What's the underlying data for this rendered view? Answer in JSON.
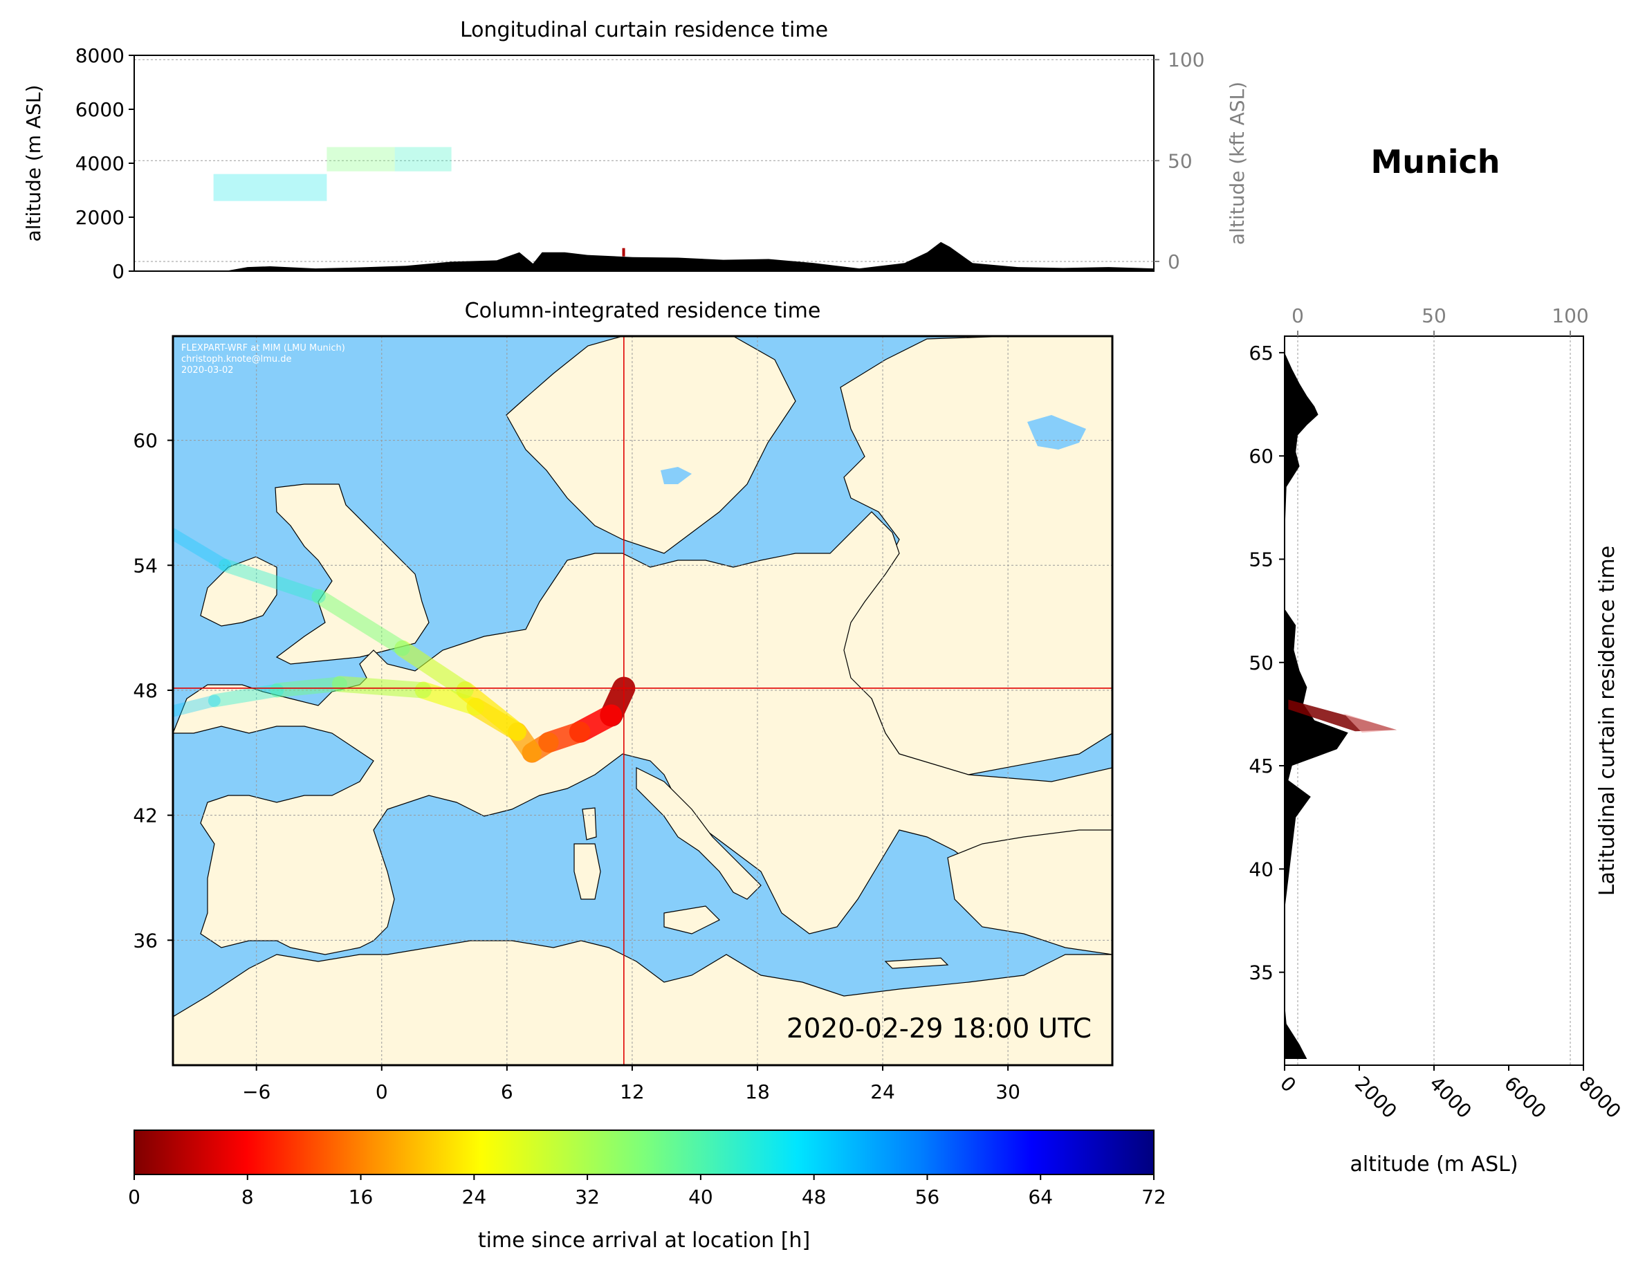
{
  "figure": {
    "location_title": "Munich",
    "timestamp": "2020-02-29 18:00 UTC",
    "watermark": [
      "FLEXPART-WRF at MIM (LMU Munich)",
      "christoph.knote@lmu.de",
      "2020-03-02"
    ]
  },
  "colors": {
    "ocean": "#87cefa",
    "land": "#fff7dc",
    "terrain": "#000000",
    "crosshair": "#e00000"
  },
  "chart_data": [
    {
      "id": "longitudinal",
      "type": "area",
      "title": "Longitudinal curtain residence time",
      "xlabel": "",
      "ylabel": "altitude (m ASL)",
      "ylabel2": "altitude (kft ASL)",
      "xlim": [
        -10,
        35
      ],
      "ylim": [
        0,
        8000
      ],
      "yticks": [
        "0",
        "2000",
        "4000",
        "6000",
        "8000"
      ],
      "y2ticks": [
        "0",
        "50",
        "100"
      ],
      "terrain_profile": {
        "x": [
          -10,
          -6,
          -5,
          -4,
          -2,
          0,
          2,
          4,
          6,
          7,
          7.6,
          8,
          9,
          10,
          12,
          14,
          16,
          18,
          20,
          22,
          24,
          25,
          25.6,
          26,
          27,
          29,
          31,
          33,
          35
        ],
        "y": [
          0,
          0,
          150,
          180,
          100,
          140,
          200,
          350,
          400,
          700,
          280,
          700,
          700,
          600,
          520,
          500,
          420,
          450,
          300,
          100,
          300,
          700,
          1080,
          900,
          300,
          150,
          120,
          150,
          100
        ]
      },
      "residence_patches": [
        {
          "x": [
            -6.5,
            -1.5
          ],
          "y": [
            2600,
            3600
          ],
          "time_h": 45
        },
        {
          "x": [
            -1.5,
            1.5
          ],
          "y": [
            3700,
            4600
          ],
          "time_h": 36
        },
        {
          "x": [
            1.5,
            4.0
          ],
          "y": [
            3700,
            4600
          ],
          "time_h": 42
        }
      ],
      "marker": {
        "x": 11.6,
        "y": 700
      }
    },
    {
      "id": "map",
      "type": "heatmap",
      "title": "Column-integrated residence time",
      "xlim": [
        -10,
        35
      ],
      "ylim": [
        30,
        65
      ],
      "xticks": [
        -6,
        0,
        6,
        12,
        18,
        24,
        30
      ],
      "yticks": [
        36,
        42,
        48,
        54,
        60
      ],
      "crosshair": {
        "lon": 11.6,
        "lat": 48.1
      },
      "trajectories": [
        {
          "points": [
            [
              11.6,
              48.1
            ],
            [
              11.0,
              46.8
            ],
            [
              9.5,
              46.0
            ],
            [
              8.0,
              45.5
            ],
            [
              7.2,
              45.0
            ]
          ],
          "time_h": [
            0,
            6,
            10,
            13,
            16
          ]
        },
        {
          "points": [
            [
              7.2,
              45.0
            ],
            [
              6.5,
              46.0
            ],
            [
              4.5,
              47.2
            ],
            [
              2.0,
              48.0
            ],
            [
              -2.0,
              48.3
            ],
            [
              -5.0,
              48.0
            ]
          ],
          "time_h": [
            16,
            20,
            24,
            28,
            34,
            40
          ]
        },
        {
          "points": [
            [
              6.5,
              46.0
            ],
            [
              4.0,
              48.0
            ],
            [
              1.0,
              50.0
            ],
            [
              -3.0,
              52.5
            ],
            [
              -7.5,
              54.0
            ],
            [
              -10.0,
              55.5
            ]
          ],
          "time_h": [
            20,
            26,
            32,
            40,
            46,
            52
          ]
        },
        {
          "points": [
            [
              -5.0,
              48.0
            ],
            [
              -8.0,
              47.5
            ],
            [
              -10.0,
              47.0
            ]
          ],
          "time_h": [
            40,
            46,
            52
          ]
        }
      ]
    },
    {
      "id": "latitudinal",
      "type": "area",
      "title": "Latitudinal curtain residence time",
      "xlabel": "altitude (m ASL)",
      "xlim": [
        0,
        8000
      ],
      "ylim": [
        30.5,
        65.8
      ],
      "xticks": [
        "0",
        "2000",
        "4000",
        "6000",
        "8000"
      ],
      "x2ticks": [
        "0",
        "50",
        "100"
      ],
      "yticks": [
        "35",
        "40",
        "45",
        "50",
        "55",
        "60",
        "65"
      ],
      "terrain_profile": {
        "lat": [
          30.8,
          31.5,
          32.5,
          33.5,
          35,
          38,
          42.5,
          43.5,
          44.3,
          45,
          45.8,
          46.6,
          47.2,
          48.0,
          48.8,
          49.6,
          50.6,
          51.8,
          52.6,
          53.5,
          56,
          58.5,
          59.5,
          60.2,
          61.0,
          61.5,
          62.0,
          62.4,
          62.9,
          63.5,
          64.2,
          65.0,
          65.8
        ],
        "alt": [
          600,
          400,
          50,
          0,
          0,
          0,
          300,
          700,
          100,
          200,
          1400,
          1700,
          800,
          500,
          600,
          400,
          250,
          300,
          0,
          0,
          0,
          50,
          400,
          300,
          350,
          600,
          900,
          800,
          600,
          400,
          200,
          0,
          0
        ]
      },
      "residence_band": {
        "lat": [
          46.8,
          48.2
        ],
        "alt": [
          100,
          3000
        ],
        "time_h": [
          0,
          8
        ]
      }
    }
  ],
  "colorbar": {
    "label": "time since arrival at location [h]",
    "min": 0,
    "max": 72,
    "ticks": [
      "0",
      "8",
      "16",
      "24",
      "32",
      "40",
      "48",
      "56",
      "64",
      "72"
    ],
    "cmap": "jet_r"
  }
}
